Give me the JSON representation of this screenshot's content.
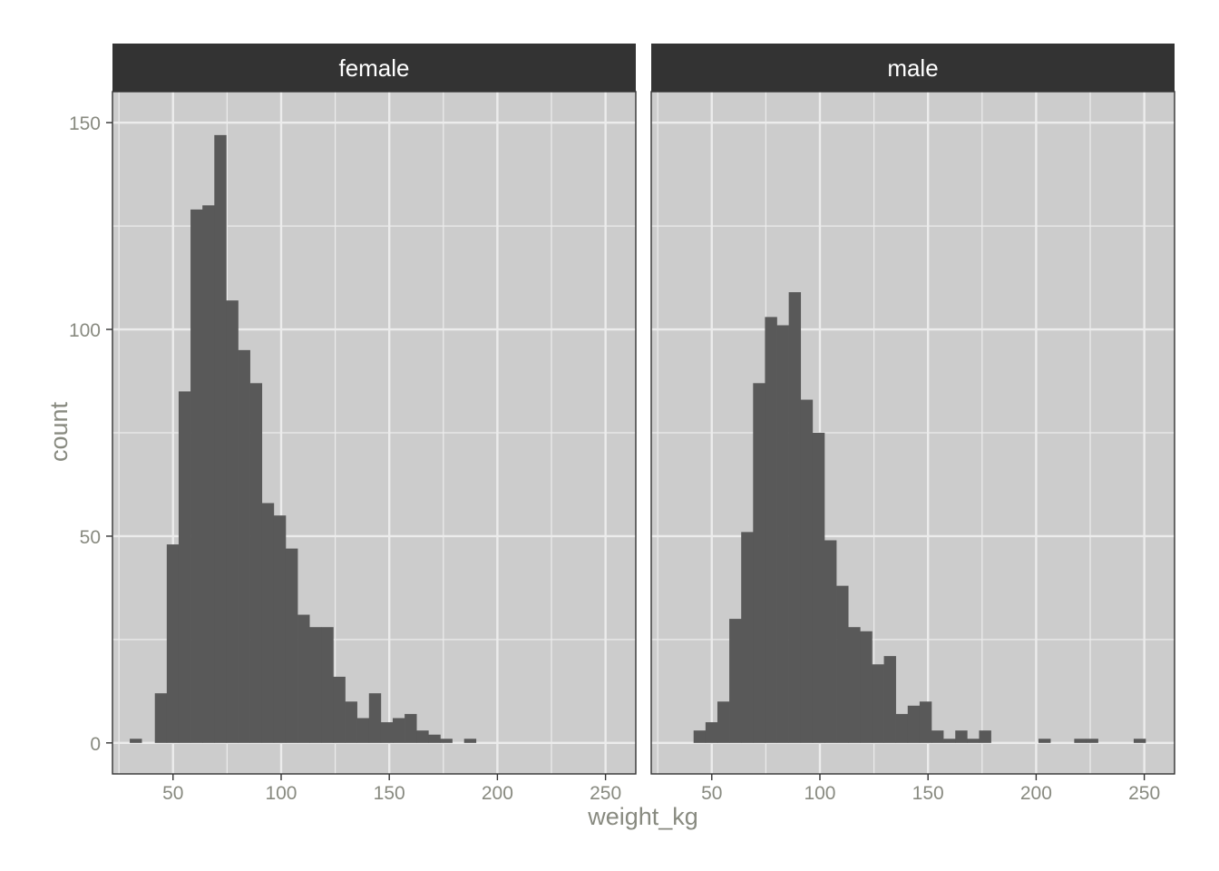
{
  "chart_data": {
    "type": "histogram",
    "xlabel": "weight_kg",
    "ylabel": "count",
    "xlim": [
      22,
      264
    ],
    "ylim": [
      -7.5,
      157.5
    ],
    "x_ticks": [
      50,
      100,
      150,
      200,
      250
    ],
    "y_ticks": [
      0,
      50,
      100,
      150
    ],
    "bin_width": 5.5,
    "colors": {
      "bar": "#595959",
      "panel_bg": "#cccccc",
      "grid": "#ececec",
      "strip_bg": "#333333",
      "strip_text": "#ffffff",
      "axis_text": "#888a80"
    },
    "panels": [
      {
        "name": "female",
        "bins": [
          {
            "x0": 30.0,
            "count": 1
          },
          {
            "x0": 41.6,
            "count": 12
          },
          {
            "x0": 47.1,
            "count": 48
          },
          {
            "x0": 52.6,
            "count": 85
          },
          {
            "x0": 58.1,
            "count": 129
          },
          {
            "x0": 63.6,
            "count": 130
          },
          {
            "x0": 69.1,
            "count": 147
          },
          {
            "x0": 74.6,
            "count": 107
          },
          {
            "x0": 80.1,
            "count": 95
          },
          {
            "x0": 85.6,
            "count": 87
          },
          {
            "x0": 91.1,
            "count": 58
          },
          {
            "x0": 96.6,
            "count": 55
          },
          {
            "x0": 102.1,
            "count": 47
          },
          {
            "x0": 107.6,
            "count": 31
          },
          {
            "x0": 113.1,
            "count": 28
          },
          {
            "x0": 118.6,
            "count": 28
          },
          {
            "x0": 124.1,
            "count": 16
          },
          {
            "x0": 129.6,
            "count": 10
          },
          {
            "x0": 135.1,
            "count": 6
          },
          {
            "x0": 140.6,
            "count": 12
          },
          {
            "x0": 146.1,
            "count": 5
          },
          {
            "x0": 151.6,
            "count": 6
          },
          {
            "x0": 157.1,
            "count": 7
          },
          {
            "x0": 162.6,
            "count": 3
          },
          {
            "x0": 168.1,
            "count": 2
          },
          {
            "x0": 173.6,
            "count": 1
          },
          {
            "x0": 184.6,
            "count": 1
          }
        ]
      },
      {
        "name": "male",
        "bins": [
          {
            "x0": 41.6,
            "count": 3
          },
          {
            "x0": 47.1,
            "count": 5
          },
          {
            "x0": 52.6,
            "count": 10
          },
          {
            "x0": 58.1,
            "count": 30
          },
          {
            "x0": 63.6,
            "count": 51
          },
          {
            "x0": 69.1,
            "count": 87
          },
          {
            "x0": 74.6,
            "count": 103
          },
          {
            "x0": 80.1,
            "count": 101
          },
          {
            "x0": 85.6,
            "count": 109
          },
          {
            "x0": 91.1,
            "count": 83
          },
          {
            "x0": 96.6,
            "count": 75
          },
          {
            "x0": 102.1,
            "count": 49
          },
          {
            "x0": 107.6,
            "count": 38
          },
          {
            "x0": 113.1,
            "count": 28
          },
          {
            "x0": 118.6,
            "count": 27
          },
          {
            "x0": 124.1,
            "count": 19
          },
          {
            "x0": 129.6,
            "count": 21
          },
          {
            "x0": 135.1,
            "count": 7
          },
          {
            "x0": 140.6,
            "count": 9
          },
          {
            "x0": 146.1,
            "count": 10
          },
          {
            "x0": 151.6,
            "count": 3
          },
          {
            "x0": 157.1,
            "count": 1
          },
          {
            "x0": 162.6,
            "count": 3
          },
          {
            "x0": 168.1,
            "count": 1
          },
          {
            "x0": 173.6,
            "count": 3
          },
          {
            "x0": 201.1,
            "count": 1
          },
          {
            "x0": 217.6,
            "count": 1
          },
          {
            "x0": 223.1,
            "count": 1
          },
          {
            "x0": 245.1,
            "count": 1
          }
        ]
      }
    ]
  }
}
